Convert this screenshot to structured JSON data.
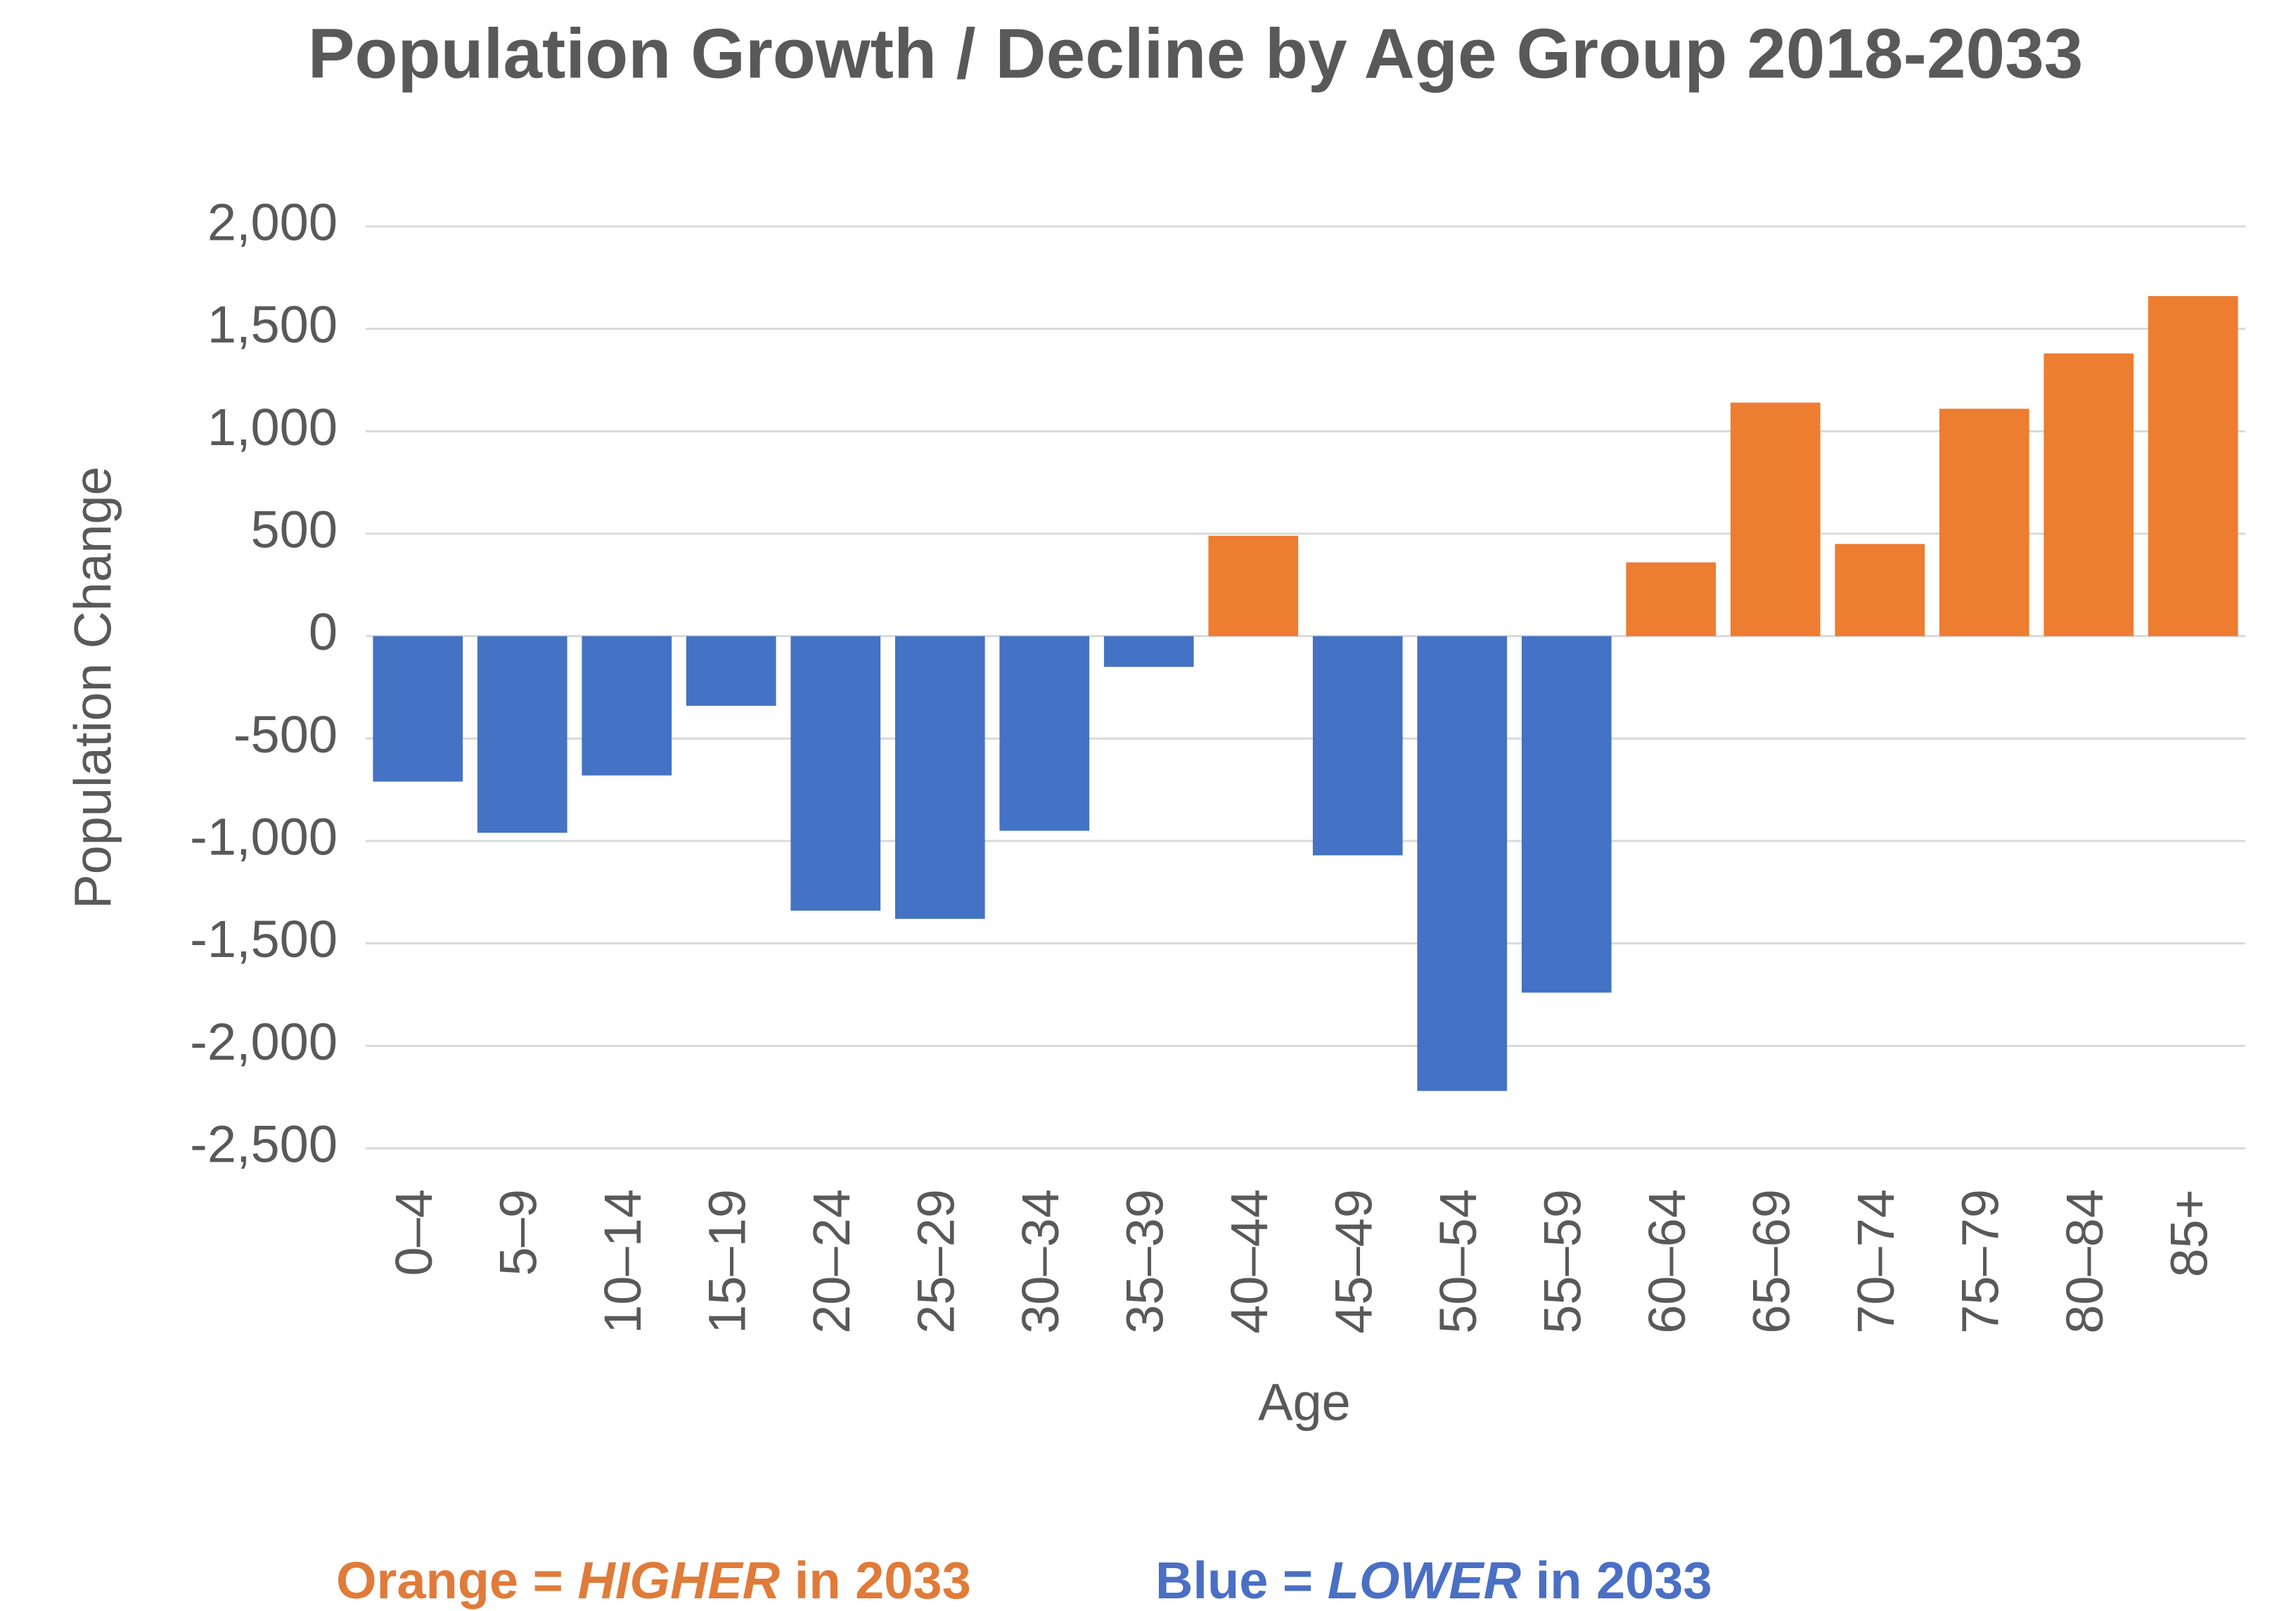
{
  "chart_data": {
    "type": "bar",
    "title": "Population Growth / Decline by Age Group 2018-2033",
    "x_label": "Age",
    "y_label": "Population Change",
    "categories": [
      "0–4",
      "5–9",
      "10–14",
      "15–19",
      "20–24",
      "25–29",
      "30–34",
      "35–39",
      "40–44",
      "45–49",
      "50–54",
      "55–59",
      "60–64",
      "65–69",
      "70–74",
      "75–79",
      "80–84",
      "85+"
    ],
    "values": [
      -710,
      -960,
      -680,
      -340,
      -1340,
      -1380,
      -950,
      -150,
      490,
      -1070,
      -2220,
      -1740,
      360,
      1140,
      450,
      1110,
      1380,
      1660
    ],
    "colors": [
      "#4472c4",
      "#4472c4",
      "#4472c4",
      "#4472c4",
      "#4472c4",
      "#4472c4",
      "#4472c4",
      "#4472c4",
      "#ed7d31",
      "#4472c4",
      "#4472c4",
      "#4472c4",
      "#ed7d31",
      "#ed7d31",
      "#ed7d31",
      "#ed7d31",
      "#ed7d31",
      "#ed7d31"
    ],
    "ylim": [
      -2500,
      2000
    ],
    "yticks": [
      {
        "value": -2500,
        "label": "-2,500"
      },
      {
        "value": -2000,
        "label": "-2,000"
      },
      {
        "value": -1500,
        "label": "-1,500"
      },
      {
        "value": -1000,
        "label": "-1,000"
      },
      -500,
      0,
      500,
      {
        "value": 1000,
        "label": "1,000"
      },
      {
        "value": 1500,
        "label": "1,500"
      },
      {
        "value": 2000,
        "label": "2,000"
      }
    ],
    "grid": true,
    "annotations": [
      {
        "parts": [
          "Orange = ",
          "HIGHER",
          " in 2033"
        ],
        "color": "#e07b39"
      },
      {
        "parts": [
          "Blue = ",
          "LOWER",
          " in 2033"
        ],
        "color": "#4a6fc4"
      }
    ]
  }
}
